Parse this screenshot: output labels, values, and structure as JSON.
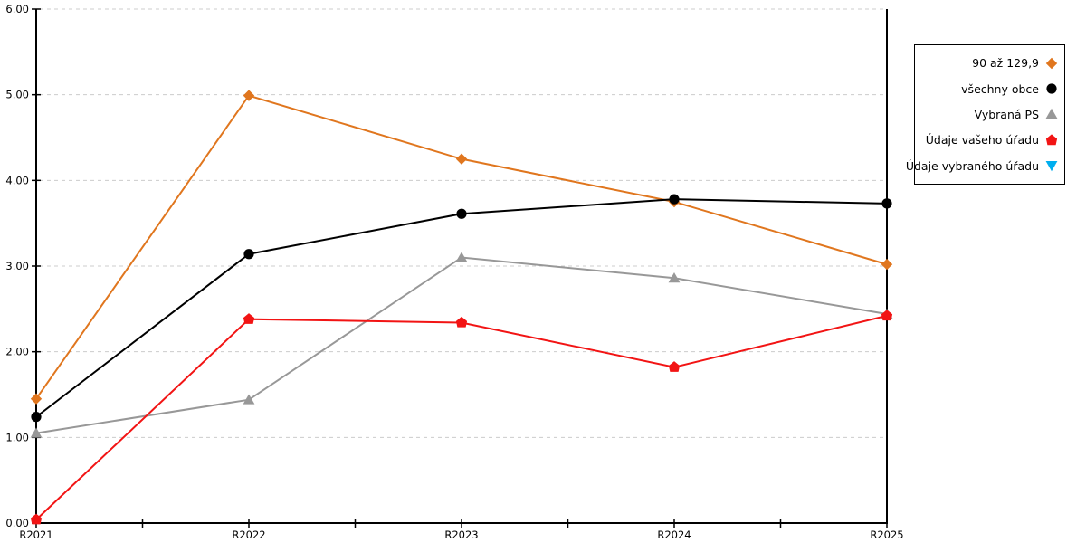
{
  "chart_data": {
    "type": "line",
    "title": "",
    "xlabel": "",
    "ylabel": "",
    "categories": [
      "R2021",
      "R2022",
      "R2023",
      "R2024",
      "R2025"
    ],
    "series": [
      {
        "name": "90 až 129,9",
        "color": "#E0761E",
        "marker": "diamond",
        "values": [
          1.45,
          4.99,
          4.25,
          3.75,
          3.02
        ]
      },
      {
        "name": "všechny obce",
        "color": "#000000",
        "marker": "circle",
        "values": [
          1.24,
          3.14,
          3.61,
          3.78,
          3.73
        ]
      },
      {
        "name": "Vybraná PS",
        "color": "#989898",
        "marker": "triangle-up",
        "values": [
          1.05,
          1.44,
          3.1,
          2.86,
          2.44
        ]
      },
      {
        "name": "Údaje vašeho úřadu",
        "color": "#F21414",
        "marker": "pentagon",
        "values": [
          0.04,
          2.38,
          2.34,
          1.82,
          2.42
        ]
      },
      {
        "name": "Údaje vybraného úřadu",
        "color": "#00AEEF",
        "marker": "triangle-down",
        "values": []
      }
    ],
    "draw_order": [
      0,
      1,
      2,
      3,
      4
    ],
    "ylim": [
      0,
      6
    ],
    "y_tick_labels": [
      "0.00",
      "1.00",
      "2.00",
      "3.00",
      "4.00",
      "5.00",
      "6.00"
    ],
    "grid": "horizontal-dashed",
    "grid_color": "#CCCCCC",
    "axis_color": "#000000",
    "legend_position": "right"
  }
}
